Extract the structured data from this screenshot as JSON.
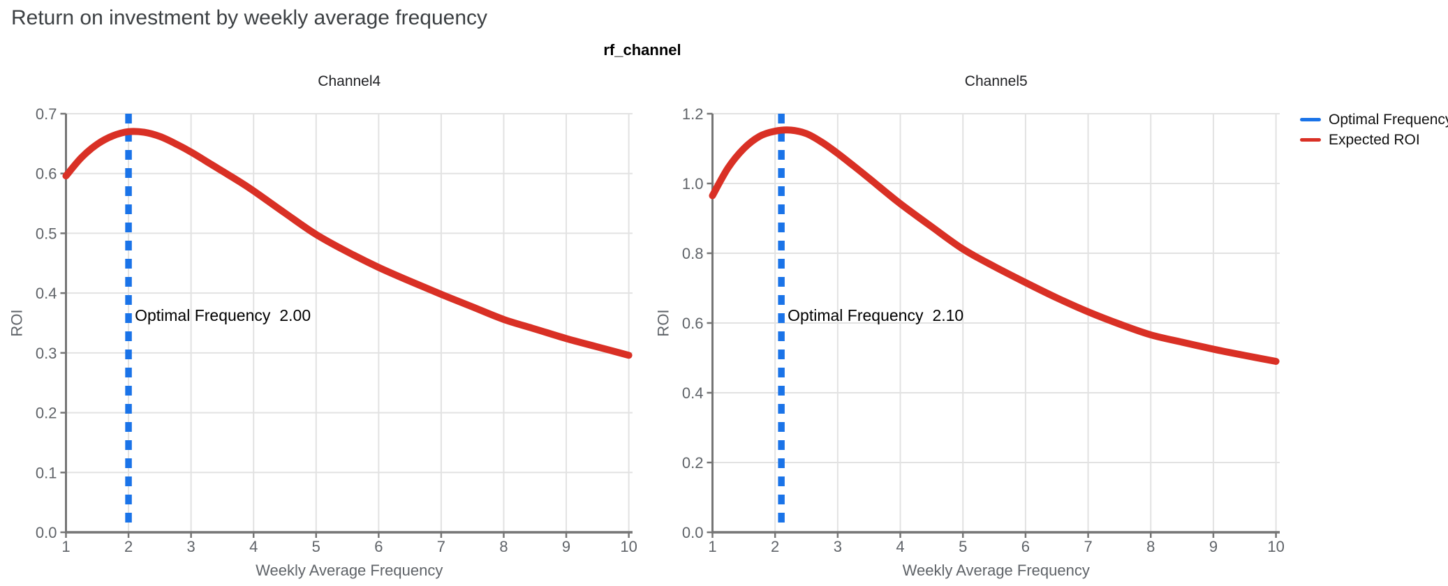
{
  "page": {
    "title": "Return on investment by weekly average frequency"
  },
  "facet": {
    "header": "rf_channel"
  },
  "legend": {
    "items": [
      {
        "label": "Optimal Frequency",
        "color": "#1A73E8"
      },
      {
        "label": "Expected ROI",
        "color": "#D93025"
      }
    ]
  },
  "colors": {
    "optimal_frequency_blue": "#1A73E8",
    "expected_roi_red": "#D93025",
    "grid": "#E2E2E2",
    "axis": "#757575",
    "tick_label": "#5F6368",
    "axis_title": "#5F6368",
    "page_title": "#3C4043",
    "facet_text": "#000000",
    "annotation_text": "#000000",
    "panel_title": "#202124"
  },
  "chart_data": [
    {
      "type": "line",
      "title": "Channel4",
      "xlabel": "Weekly Average Frequency",
      "ylabel": "ROI",
      "xlim": [
        1,
        10.06
      ],
      "ylim": [
        0,
        0.7
      ],
      "xticks": [
        1,
        2,
        3,
        4,
        5,
        6,
        7,
        8,
        9,
        10
      ],
      "ytick_labels": [
        "0.0",
        "0.1",
        "0.2",
        "0.3",
        "0.4",
        "0.5",
        "0.6",
        "0.7"
      ],
      "grid": true,
      "optimal_frequency": 2.0,
      "annotation": {
        "label": "Optimal Frequency",
        "value": "2.00"
      },
      "series": [
        {
          "name": "Expected ROI",
          "x": [
            1,
            1.25,
            1.5,
            1.75,
            2,
            2.25,
            2.5,
            2.75,
            3,
            3.25,
            3.5,
            3.75,
            4,
            4.5,
            5,
            5.5,
            6,
            6.5,
            7,
            7.5,
            8,
            8.5,
            9,
            9.5,
            10
          ],
          "y": [
            0.596,
            0.627,
            0.649,
            0.663,
            0.67,
            0.669,
            0.662,
            0.65,
            0.636,
            0.62,
            0.604,
            0.588,
            0.571,
            0.534,
            0.498,
            0.469,
            0.443,
            0.42,
            0.398,
            0.377,
            0.356,
            0.34,
            0.324,
            0.31,
            0.296
          ]
        }
      ]
    },
    {
      "type": "line",
      "title": "Channel5",
      "xlabel": "Weekly Average Frequency",
      "ylabel": "ROI",
      "xlim": [
        1,
        10.06
      ],
      "ylim": [
        0,
        1.2
      ],
      "xticks": [
        1,
        2,
        3,
        4,
        5,
        6,
        7,
        8,
        9,
        10
      ],
      "ytick_labels": [
        "0.0",
        "0.2",
        "0.4",
        "0.6",
        "0.8",
        "1.0",
        "1.2"
      ],
      "grid": true,
      "optimal_frequency": 2.1,
      "annotation": {
        "label": "Optimal Frequency",
        "value": "2.10"
      },
      "series": [
        {
          "name": "Expected ROI",
          "x": [
            1,
            1.25,
            1.5,
            1.75,
            2,
            2.25,
            2.5,
            2.75,
            3,
            3.25,
            3.5,
            3.75,
            4,
            4.5,
            5,
            5.5,
            6,
            6.5,
            7,
            7.5,
            8,
            8.5,
            9,
            9.5,
            10
          ],
          "y": [
            0.965,
            1.045,
            1.1,
            1.135,
            1.15,
            1.153,
            1.143,
            1.118,
            1.086,
            1.051,
            1.015,
            0.978,
            0.942,
            0.876,
            0.812,
            0.762,
            0.716,
            0.672,
            0.632,
            0.597,
            0.566,
            0.545,
            0.525,
            0.507,
            0.49
          ]
        }
      ]
    }
  ]
}
